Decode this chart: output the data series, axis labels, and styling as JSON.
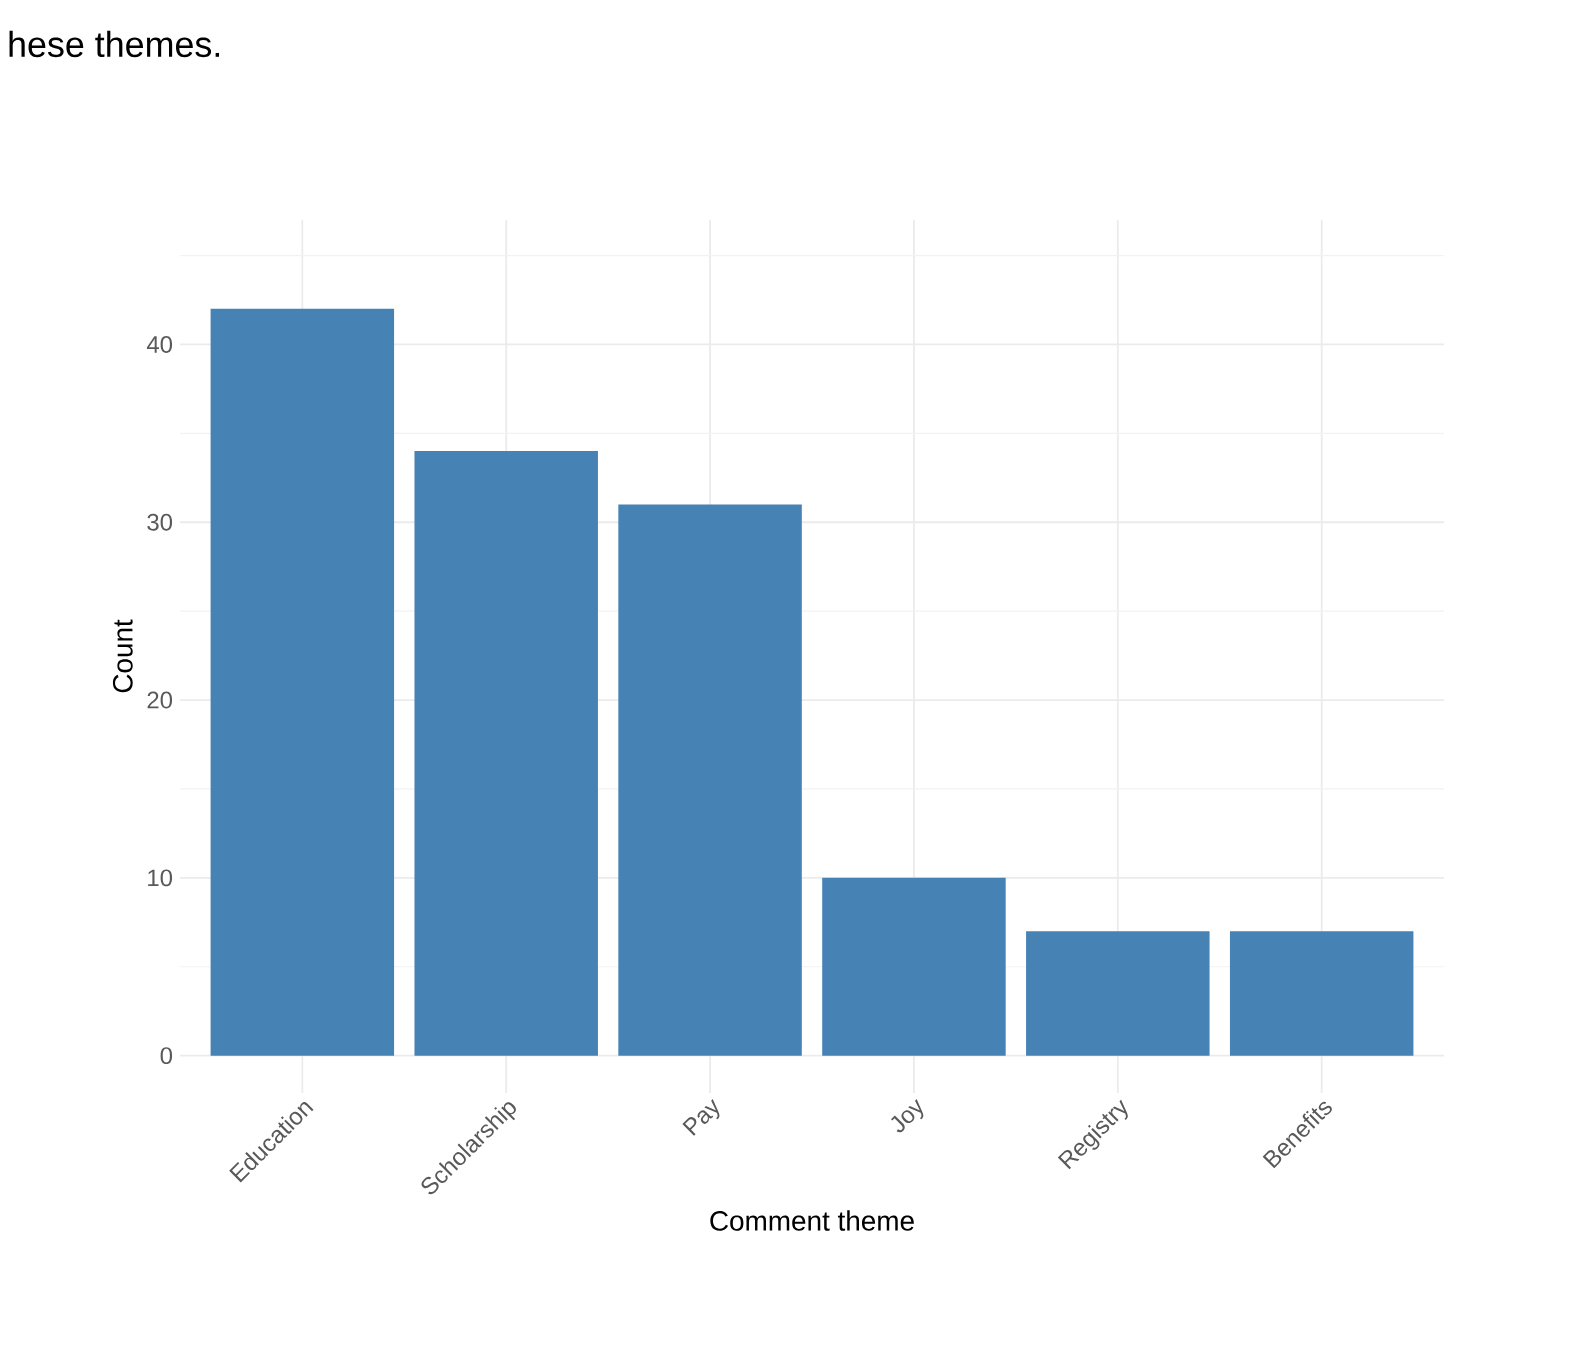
{
  "chart_data": {
    "type": "bar",
    "categories": [
      "Education",
      "Scholarship",
      "Pay",
      "Joy",
      "Registry",
      "Benefits"
    ],
    "values": [
      42,
      34,
      31,
      10,
      7,
      7
    ],
    "color": "#4682b4",
    "xlabel": "Comment theme",
    "ylabel": "Count",
    "ylim": [
      -2.1,
      47
    ],
    "yticks": [
      0,
      10,
      20,
      30,
      40
    ],
    "grid": true,
    "annotations": [
      "hese themes."
    ]
  }
}
